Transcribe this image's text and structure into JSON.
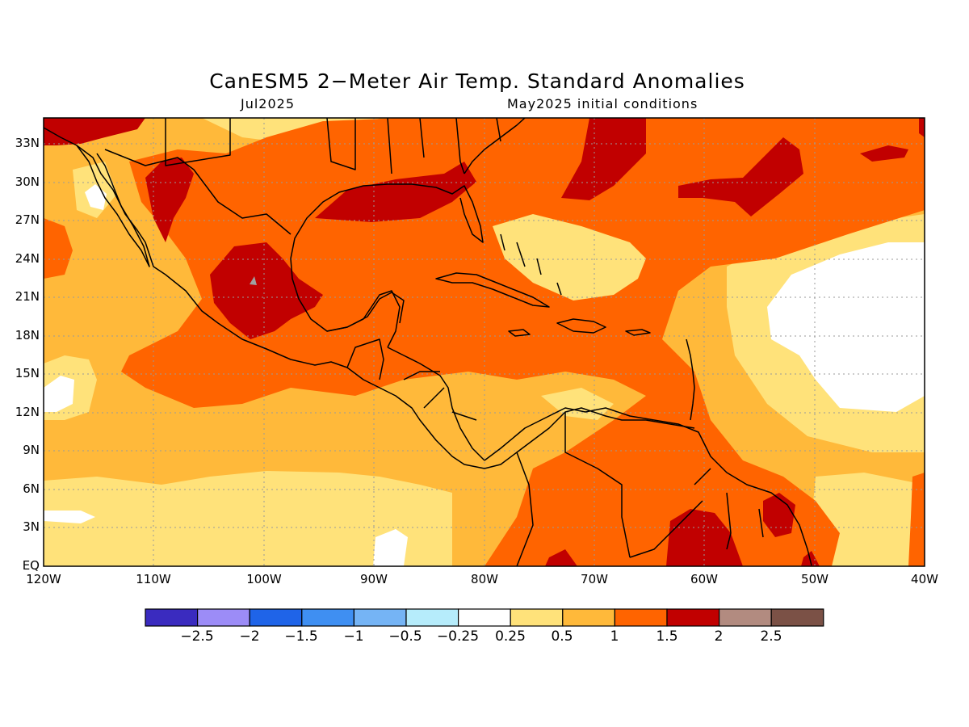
{
  "title": "CanESM5 2−Meter Air Temp. Standard Anomalies",
  "valid_month": "Jul2025",
  "init_label": "May2025 initial conditions",
  "lat_ticks": [
    "33N",
    "30N",
    "27N",
    "24N",
    "21N",
    "18N",
    "15N",
    "12N",
    "9N",
    "6N",
    "3N",
    "EQ"
  ],
  "lon_ticks": [
    "120W",
    "110W",
    "100W",
    "90W",
    "80W",
    "70W",
    "60W",
    "50W",
    "40W"
  ],
  "colorbar": {
    "colors": [
      "#3a2bbf",
      "#9c8cf7",
      "#1f64e8",
      "#3f8ff2",
      "#75b4f5",
      "#b6ecfb",
      "#ffffff",
      "#ffe27a",
      "#ffb93a",
      "#ff6400",
      "#c10000",
      "#b28b80",
      "#7b5146"
    ],
    "labels": [
      "−2.5",
      "−2",
      "−1.5",
      "−1",
      "−0.5",
      "−0.25",
      "0.25",
      "0.5",
      "1",
      "1.5",
      "2",
      "2.5"
    ]
  },
  "legend_colors": {
    "c05": "#ffe27a",
    "c1": "#ffb93a",
    "c15": "#ff6400",
    "c2": "#c10000",
    "white": "#ffffff",
    "gray": "#a0a0a0"
  }
}
